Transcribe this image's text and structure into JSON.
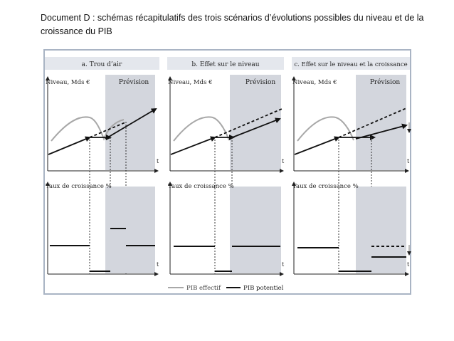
{
  "document": {
    "title": "Document D : schémas récapitulatifs des trois scénarios d’évolutions possibles du niveau et de la croissance du PIB"
  },
  "panels": [
    {
      "header": "a. Trou d’air",
      "level_label": "Niveau, Mds €",
      "forecast_label": "Prévision",
      "growth_label": "Taux de croissance %",
      "t_label": "t"
    },
    {
      "header": "b. Effet sur le niveau",
      "level_label": "Niveau, Mds €",
      "forecast_label": "Prévision",
      "growth_label": "Taux de croissance %",
      "t_label": "t"
    },
    {
      "header": "c. Effet sur le niveau et la croissance",
      "level_label": "Niveau, Mds €",
      "forecast_label": "Prévision",
      "growth_label": "Taux de croissance %",
      "t_label": "t"
    }
  ],
  "legend": {
    "effective": "PIB effectif",
    "potential": "PIB potentiel"
  },
  "colors": {
    "frame": "#a9b4c4",
    "header_bg": "#e4e7ed",
    "forecast_bg": "#d3d6dd",
    "effective_line": "#a8a8a8",
    "potential_line": "#111111"
  }
}
